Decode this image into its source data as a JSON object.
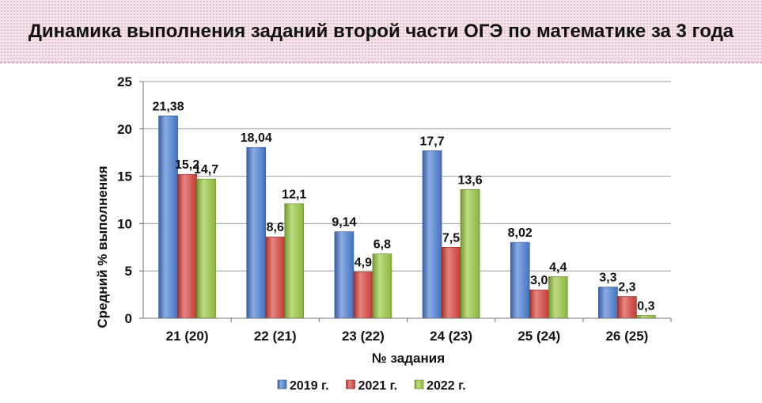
{
  "page": {
    "title": "Динамика выполнения заданий второй части ОГЭ по математике за 3 года"
  },
  "chart_data": {
    "type": "bar",
    "title": "Динамика выполнения заданий второй части ОГЭ по математике за 3 года",
    "xlabel": "№ задания",
    "ylabel": "Средний % выполнения",
    "categories": [
      "21 (20)",
      "22 (21)",
      "23 (22)",
      "24 (23)",
      "25 (24)",
      "26 (25)"
    ],
    "series": [
      {
        "name": "2019 г.",
        "color": "#4a7fd6",
        "values": [
          21.38,
          18.04,
          9.14,
          17.7,
          8.02,
          3.3
        ],
        "labels": [
          "21,38",
          "18,04",
          "9,14",
          "17,7",
          "8,02",
          "3,3"
        ]
      },
      {
        "name": "2021 г.",
        "color": "#d9413b",
        "values": [
          15.2,
          8.6,
          4.9,
          7.5,
          3.0,
          2.3
        ],
        "labels": [
          "15,2",
          "8,6",
          "4,9",
          "7,5",
          "3,0",
          "2,3"
        ]
      },
      {
        "name": "2022 г.",
        "color": "#99c93f",
        "values": [
          14.7,
          12.1,
          6.8,
          13.6,
          4.4,
          0.3
        ],
        "labels": [
          "14,7",
          "12,1",
          "6,8",
          "13,6",
          "4,4",
          "0,3"
        ]
      }
    ],
    "ylim": [
      0,
      25
    ],
    "yticks": [
      "0",
      "5",
      "10",
      "15",
      "20",
      "25"
    ],
    "grid": true,
    "legend_position": "bottom"
  }
}
